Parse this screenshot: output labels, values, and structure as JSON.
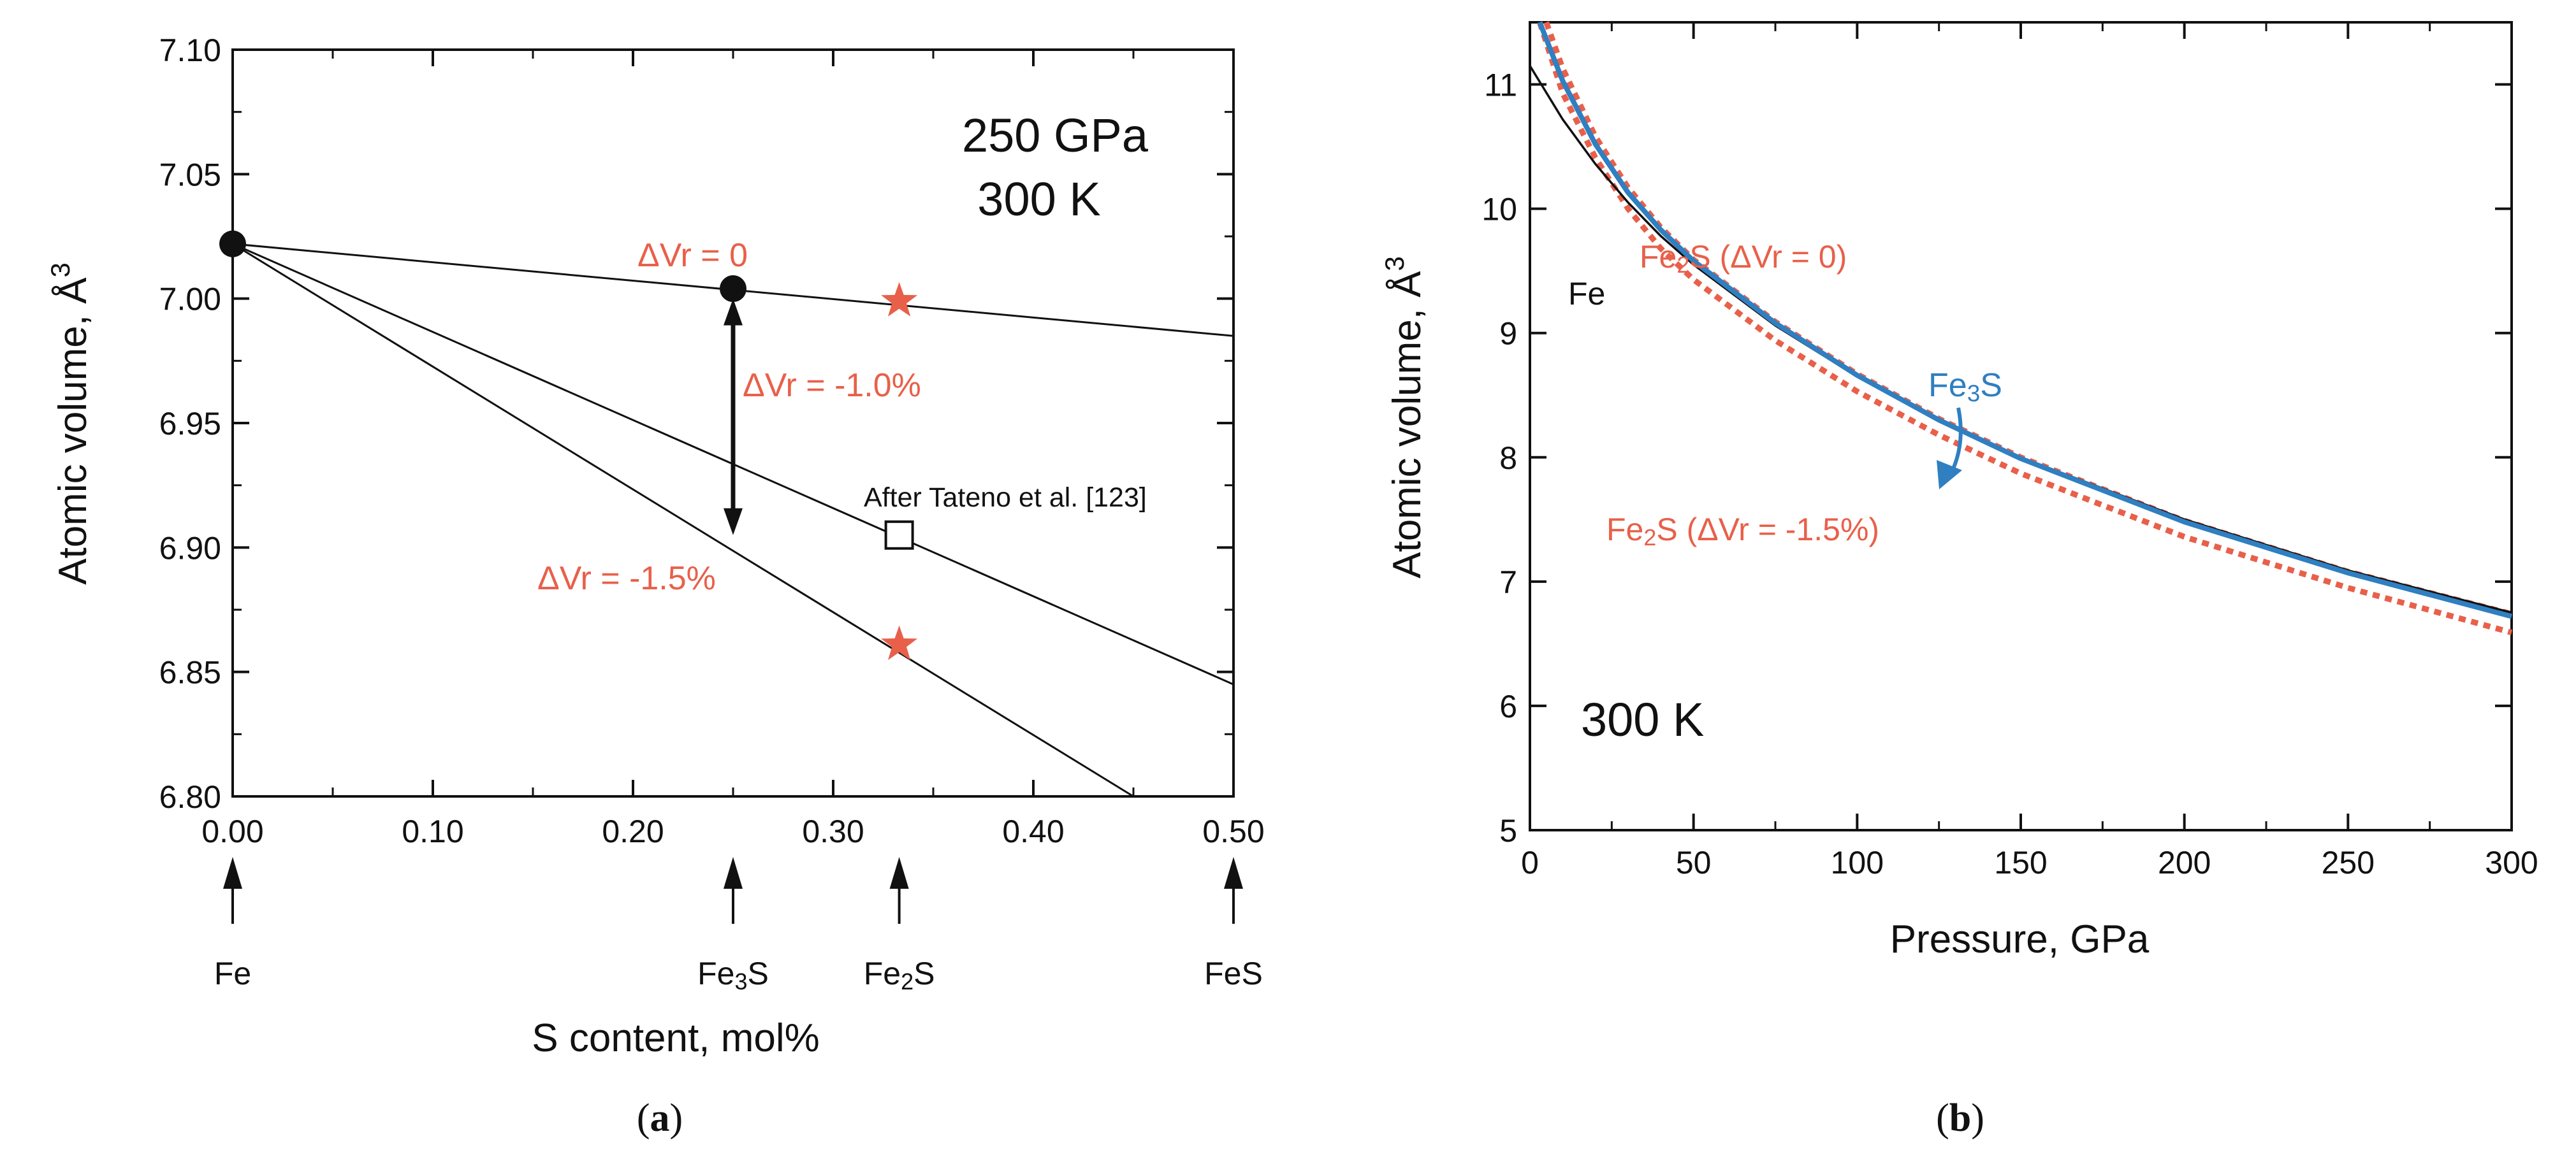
{
  "colors": {
    "black": "#111111",
    "red": "#e8604a",
    "blue": "#2f7fc1"
  },
  "chart_data": [
    {
      "id": "a",
      "type": "line",
      "caption_open": "(",
      "caption_letter": "a",
      "caption_close": ")",
      "title_lines": [
        "250 GPa",
        "300 K"
      ],
      "xlabel": "S content, mol%",
      "ylabel": "Atomic volume, Å",
      "ylabel_sup": "3",
      "xlim": [
        0,
        0.5
      ],
      "ylim": [
        6.8,
        7.1
      ],
      "xticks": [
        {
          "v": 0.0,
          "label": "0.00"
        },
        {
          "v": 0.1,
          "label": "0.10"
        },
        {
          "v": 0.2,
          "label": "0.20"
        },
        {
          "v": 0.3,
          "label": "0.30"
        },
        {
          "v": 0.4,
          "label": "0.40"
        },
        {
          "v": 0.5,
          "label": "0.50"
        }
      ],
      "yticks": [
        {
          "v": 6.8,
          "label": "6.80"
        },
        {
          "v": 6.85,
          "label": "6.85"
        },
        {
          "v": 6.9,
          "label": "6.90"
        },
        {
          "v": 6.95,
          "label": "6.95"
        },
        {
          "v": 7.0,
          "label": "7.00"
        },
        {
          "v": 7.05,
          "label": "7.05"
        },
        {
          "v": 7.1,
          "label": "7.10"
        }
      ],
      "series": [
        {
          "name": "ΔVr = 0",
          "x": [
            0.0,
            0.5
          ],
          "y": [
            7.022,
            6.985
          ]
        },
        {
          "name": "After Tateno et al. [123]",
          "x": [
            0.0,
            0.5
          ],
          "y": [
            7.022,
            6.845
          ]
        },
        {
          "name": "ΔVr = -1.5%",
          "x": [
            0.0,
            0.45
          ],
          "y": [
            7.022,
            6.8
          ]
        }
      ],
      "markers": [
        {
          "name": "Fe",
          "shape": "circle",
          "x": 0.0,
          "y": 7.022
        },
        {
          "name": "Fe3S",
          "shape": "circle",
          "x": 0.25,
          "y": 7.004
        },
        {
          "name": "Fe2S ΔVr = 0",
          "shape": "star",
          "x": 0.333,
          "y": 6.999
        },
        {
          "name": "Fe2S ΔVr = -1.5%",
          "shape": "star",
          "x": 0.333,
          "y": 6.861
        },
        {
          "name": "Tateno Fe2S",
          "shape": "square",
          "x": 0.333,
          "y": 6.905
        }
      ],
      "double_arrow": {
        "x": 0.25,
        "y_top": 7.0,
        "y_bottom": 6.905
      },
      "annotations": [
        {
          "text": "ΔVr = 0",
          "color": "red"
        },
        {
          "text": "ΔVr = -1.0%",
          "color": "red"
        },
        {
          "text": "ΔVr = -1.5%",
          "color": "red"
        },
        {
          "text": "After Tateno et al. [123]",
          "color": "black"
        }
      ],
      "compounds": [
        {
          "x": 0.0,
          "base": "Fe",
          "sub": "",
          "tail": ""
        },
        {
          "x": 0.25,
          "base": "Fe",
          "sub": "3",
          "tail": "S"
        },
        {
          "x": 0.333,
          "base": "Fe",
          "sub": "2",
          "tail": "S"
        },
        {
          "x": 0.5,
          "base": "FeS",
          "sub": "",
          "tail": ""
        }
      ]
    },
    {
      "id": "b",
      "type": "line",
      "caption_open": "(",
      "caption_letter": "b",
      "caption_close": ")",
      "title": "300 K",
      "xlabel": "Pressure, GPa",
      "ylabel": "Atomic volume, Å",
      "ylabel_sup": "3",
      "xlim": [
        0,
        300
      ],
      "ylim": [
        5,
        11.5
      ],
      "xticks": [
        {
          "v": 0,
          "label": "0"
        },
        {
          "v": 50,
          "label": "50"
        },
        {
          "v": 100,
          "label": "100"
        },
        {
          "v": 150,
          "label": "150"
        },
        {
          "v": 200,
          "label": "200"
        },
        {
          "v": 250,
          "label": "250"
        },
        {
          "v": 300,
          "label": "300"
        }
      ],
      "yticks": [
        {
          "v": 5,
          "label": "5"
        },
        {
          "v": 6,
          "label": "6"
        },
        {
          "v": 7,
          "label": "7"
        },
        {
          "v": 8,
          "label": "8"
        },
        {
          "v": 9,
          "label": "9"
        },
        {
          "v": 10,
          "label": "10"
        },
        {
          "v": 11,
          "label": "11"
        }
      ],
      "series": [
        {
          "name": "Fe",
          "color": "black",
          "style": "solid",
          "x": [
            0,
            10,
            20,
            30,
            40,
            50,
            75,
            100,
            125,
            150,
            200,
            250,
            300
          ],
          "y": [
            11.15,
            10.72,
            10.36,
            10.05,
            9.78,
            9.55,
            9.06,
            8.65,
            8.3,
            8.0,
            7.5,
            7.09,
            6.75
          ]
        },
        {
          "name": "Fe3S",
          "color": "blue",
          "style": "solid",
          "x": [
            3,
            10,
            20,
            30,
            40,
            50,
            75,
            100,
            125,
            150,
            200,
            250,
            300
          ],
          "y": [
            11.5,
            11.03,
            10.52,
            10.13,
            9.83,
            9.58,
            9.08,
            8.66,
            8.3,
            7.99,
            7.48,
            7.07,
            6.72
          ]
        },
        {
          "name": "Fe2S (ΔVr = 0)",
          "color": "red",
          "style": "dotted",
          "x": [
            5,
            10,
            20,
            30,
            40,
            50,
            75,
            100,
            125,
            150,
            200,
            250,
            300
          ],
          "y": [
            11.5,
            11.13,
            10.58,
            10.17,
            9.85,
            9.59,
            9.09,
            8.67,
            8.31,
            8.0,
            7.49,
            7.08,
            6.74
          ]
        },
        {
          "name": "Fe2S (ΔVr = -1.5%)",
          "color": "red",
          "style": "dotted",
          "x": [
            3,
            10,
            20,
            30,
            40,
            50,
            75,
            100,
            125,
            150,
            200,
            250,
            300
          ],
          "y": [
            11.5,
            10.93,
            10.41,
            10.0,
            9.68,
            9.43,
            8.94,
            8.53,
            8.18,
            7.87,
            7.36,
            6.95,
            6.59
          ]
        }
      ],
      "labels": [
        {
          "base": "Fe",
          "sub": "",
          "tail": "",
          "color": "black"
        },
        {
          "base": "Fe",
          "sub": "2",
          "tail": "S (ΔVr = 0)",
          "color": "red"
        },
        {
          "base": "Fe",
          "sub": "3",
          "tail": "S",
          "color": "blue"
        },
        {
          "base": "Fe",
          "sub": "2",
          "tail": "S (ΔVr = -1.5%)",
          "color": "red"
        }
      ]
    }
  ]
}
